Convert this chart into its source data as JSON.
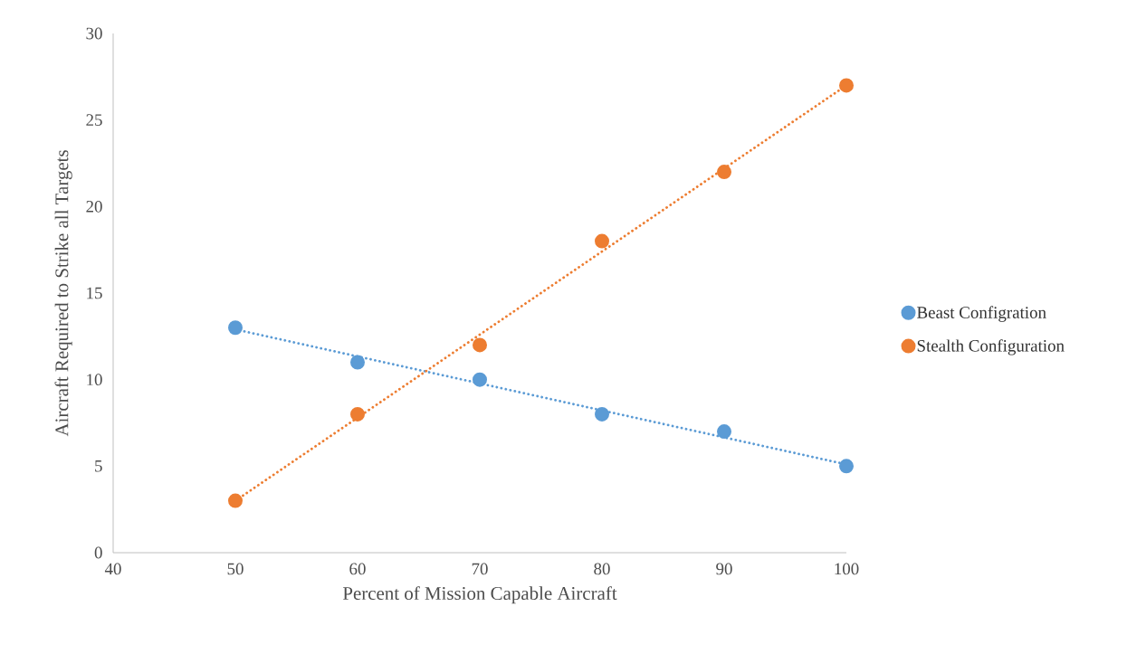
{
  "chart_data": {
    "type": "scatter",
    "xlabel": "Percent of Mission Capable Aircraft",
    "ylabel": "Aircraft Required to Strike all Targets",
    "xlim": [
      40,
      100
    ],
    "ylim": [
      0,
      30
    ],
    "xticks": [
      40,
      50,
      60,
      70,
      80,
      90,
      100
    ],
    "yticks": [
      0,
      5,
      10,
      15,
      20,
      25,
      30
    ],
    "legend": "right",
    "series": [
      {
        "name": "Beast Configration",
        "marker": "circle",
        "color": "#5b9bd5",
        "x": [
          50,
          60,
          70,
          80,
          90,
          100
        ],
        "values": [
          13,
          11,
          10,
          8,
          7,
          5
        ]
      },
      {
        "name": "Stealth Configuration",
        "marker": "circle",
        "color": "#ed7d31",
        "x": [
          50,
          60,
          70,
          80,
          90,
          100
        ],
        "values": [
          3,
          8,
          12,
          18,
          22,
          27
        ]
      },
      {
        "type": "line",
        "marker": "none",
        "line_style": "dotted",
        "color": "#5b9bd5",
        "x": [
          50,
          100
        ],
        "values": [
          12.9,
          5.1
        ]
      },
      {
        "type": "line",
        "marker": "none",
        "line_style": "dotted",
        "color": "#ed7d31",
        "x": [
          50,
          100
        ],
        "values": [
          3,
          27
        ]
      }
    ]
  }
}
